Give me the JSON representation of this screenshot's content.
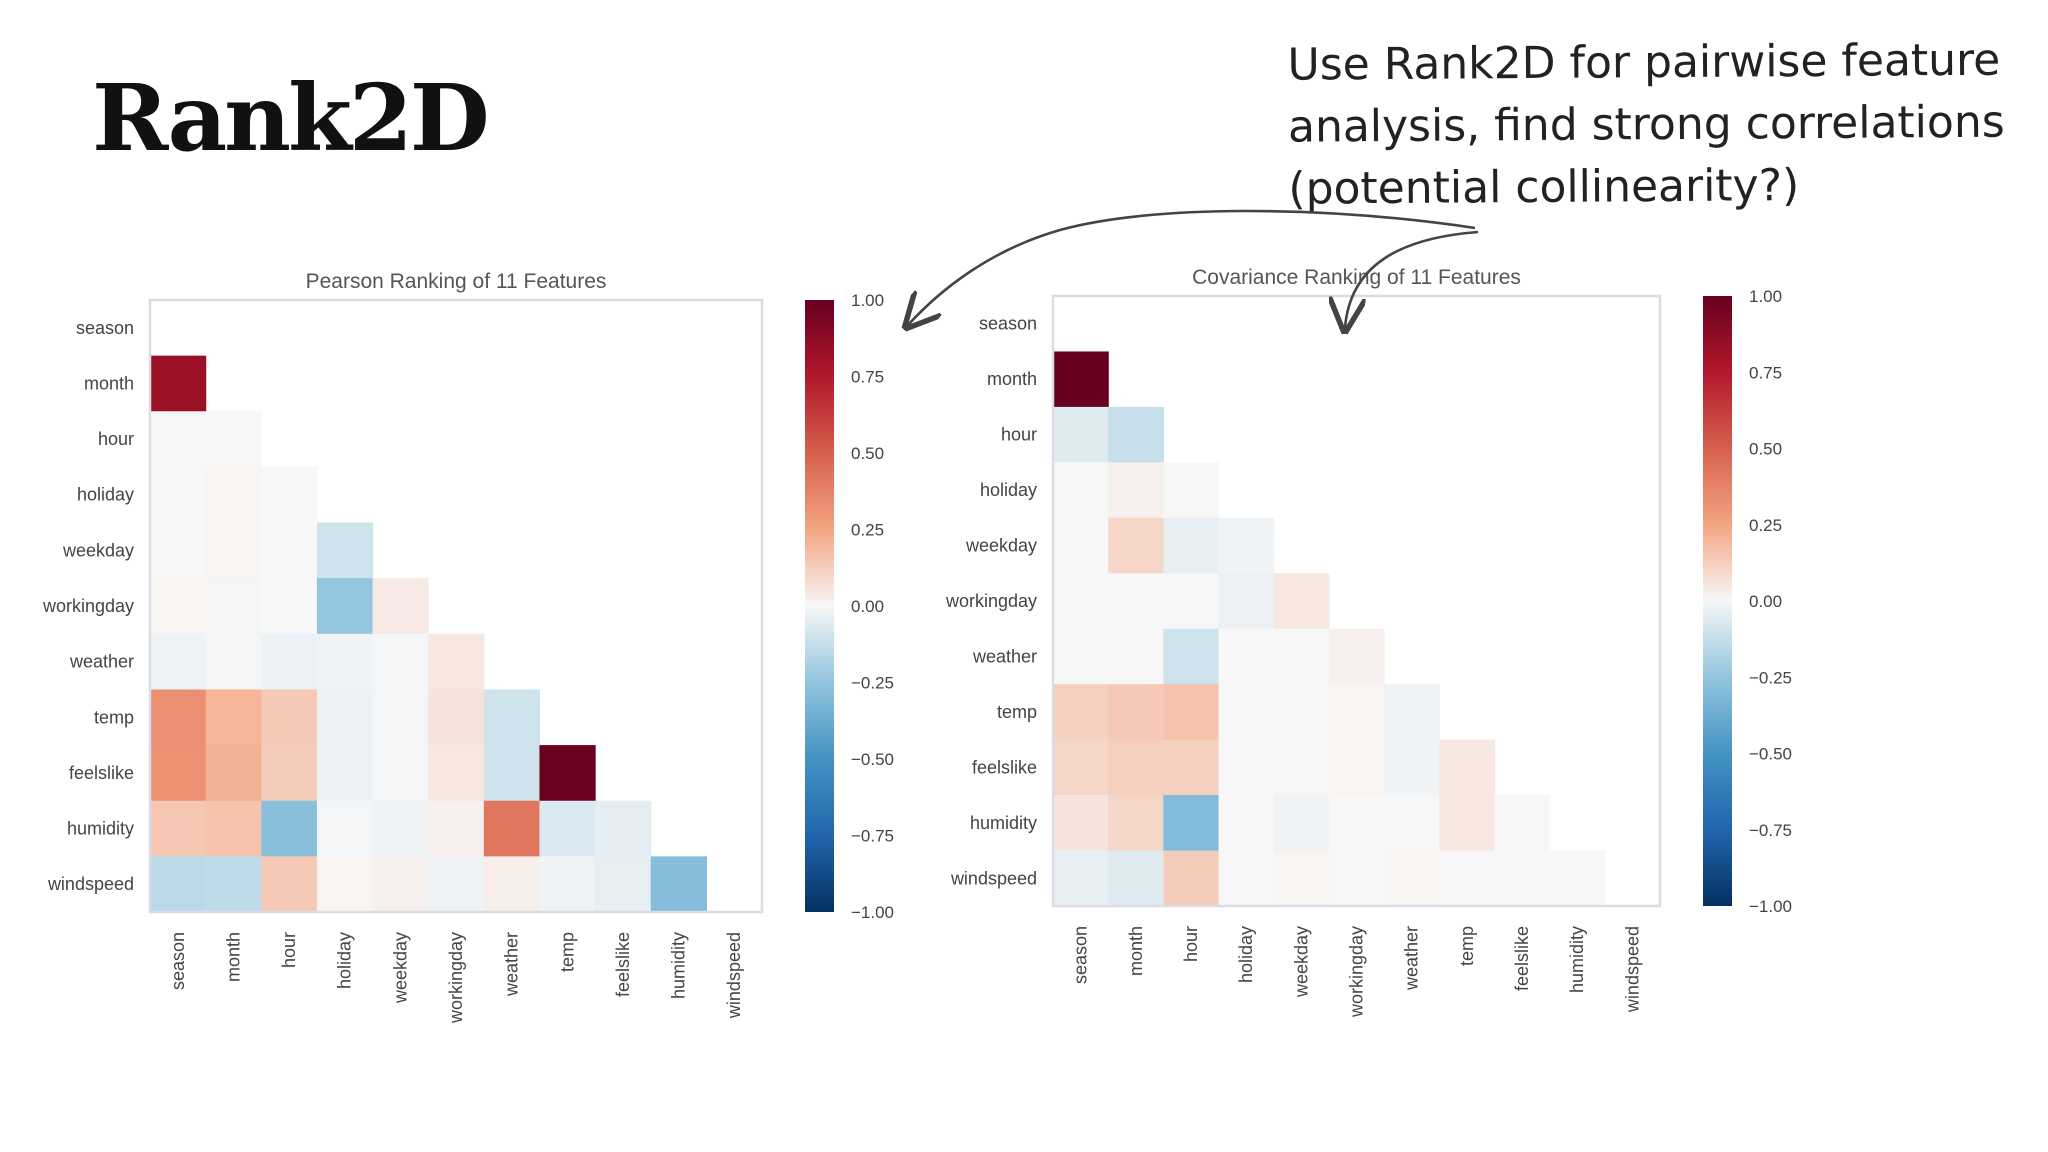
{
  "slide": {
    "title": "Rank2D",
    "annotation_lines": [
      "Use Rank2D for pairwise feature",
      "analysis, find strong correlations",
      "(potential collinearity?)"
    ]
  },
  "colors": {
    "strong_positive": "#67001f",
    "neutral": "#f7f7f7",
    "strong_negative": "#053061"
  },
  "chart_data": [
    {
      "type": "heatmap",
      "title": "Pearson Ranking of 11 Features",
      "features": [
        "season",
        "month",
        "hour",
        "holiday",
        "weekday",
        "workingday",
        "weather",
        "temp",
        "feelslike",
        "humidity",
        "windspeed"
      ],
      "colorbar": {
        "range": [
          -1.0,
          1.0
        ],
        "ticks": [
          "1.00",
          "0.75",
          "0.50",
          "0.25",
          "0.00",
          "−0.25",
          "−0.50",
          "−0.75",
          "−1.00"
        ]
      },
      "matrix": [
        [],
        [
          0.83
        ],
        [
          0.0,
          0.0
        ],
        [
          0.0,
          0.01,
          0.0
        ],
        [
          0.0,
          0.01,
          0.0,
          -0.1
        ],
        [
          0.01,
          -0.01,
          0.0,
          -0.25,
          0.04
        ],
        [
          -0.02,
          -0.01,
          -0.03,
          -0.02,
          -0.01,
          0.05
        ],
        [
          0.33,
          0.2,
          0.14,
          -0.03,
          -0.01,
          0.06,
          -0.1
        ],
        [
          0.32,
          0.21,
          0.13,
          -0.03,
          -0.01,
          0.05,
          -0.1,
          0.99
        ],
        [
          0.15,
          0.16,
          -0.28,
          -0.01,
          -0.02,
          0.02,
          0.42,
          -0.07,
          -0.05
        ],
        [
          -0.15,
          -0.14,
          0.14,
          0.01,
          0.02,
          -0.02,
          0.03,
          -0.02,
          -0.04,
          -0.29
        ]
      ]
    },
    {
      "type": "heatmap",
      "title": "Covariance Ranking of 11 Features",
      "features": [
        "season",
        "month",
        "hour",
        "holiday",
        "weekday",
        "workingday",
        "weather",
        "temp",
        "feelslike",
        "humidity",
        "windspeed"
      ],
      "colorbar": {
        "range": [
          -1.0,
          1.0
        ],
        "ticks": [
          "1.00",
          "0.75",
          "0.50",
          "0.25",
          "0.00",
          "−0.25",
          "−0.50",
          "−0.75",
          "−1.00"
        ]
      },
      "matrix": [
        [],
        [
          1.0
        ],
        [
          -0.06,
          -0.12
        ],
        [
          0.0,
          0.02,
          0.0
        ],
        [
          0.0,
          0.1,
          -0.04,
          -0.02
        ],
        [
          0.0,
          0.0,
          0.0,
          -0.03,
          0.05
        ],
        [
          0.0,
          0.0,
          -0.1,
          0.0,
          0.0,
          0.02
        ],
        [
          0.12,
          0.14,
          0.16,
          0.0,
          0.0,
          0.01,
          -0.02
        ],
        [
          0.1,
          0.12,
          0.12,
          0.0,
          0.0,
          0.01,
          -0.02,
          0.05
        ],
        [
          0.06,
          0.1,
          -0.3,
          0.0,
          -0.02,
          0.0,
          0.0,
          0.05,
          0.0
        ],
        [
          -0.04,
          -0.06,
          0.13,
          0.0,
          0.01,
          0.0,
          0.01,
          0.0,
          0.0,
          0.0
        ]
      ]
    }
  ]
}
